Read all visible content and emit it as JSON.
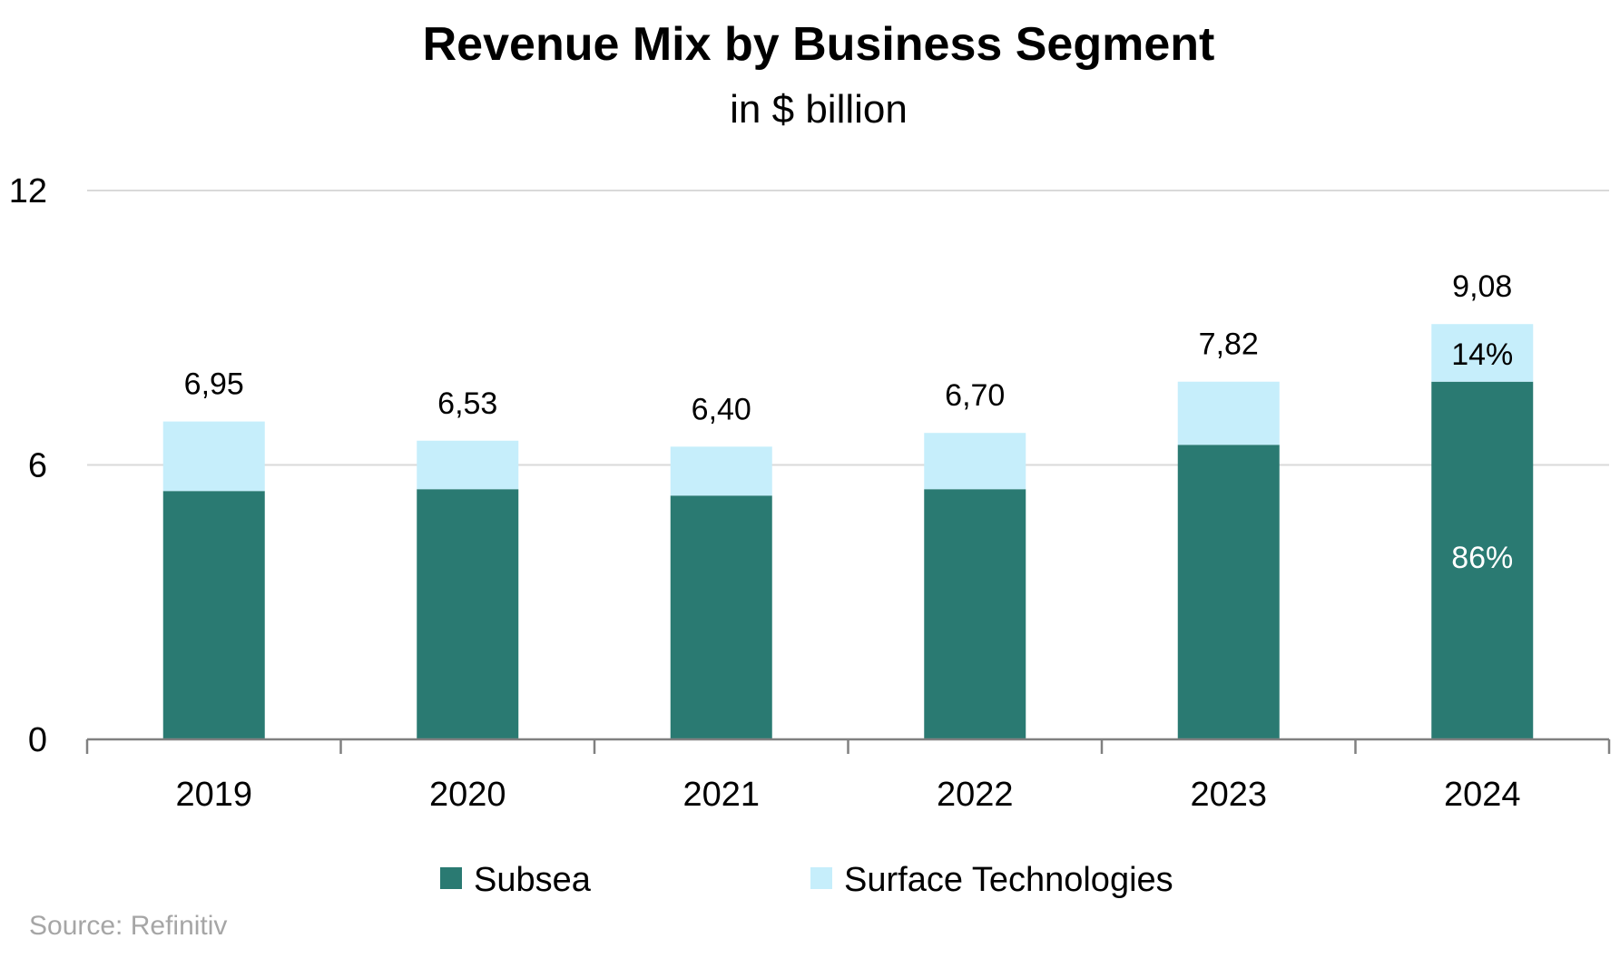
{
  "chart_data": {
    "type": "bar",
    "stacked": true,
    "title": "Revenue Mix by Business Segment",
    "subtitle": "in $ billion",
    "categories": [
      "2019",
      "2020",
      "2021",
      "2022",
      "2023",
      "2024"
    ],
    "series": [
      {
        "name": "Subsea",
        "color": "#2a7a72",
        "values": [
          5.43,
          5.47,
          5.33,
          5.47,
          6.44,
          7.82
        ]
      },
      {
        "name": "Surface Technologies",
        "color": "#c6eefb",
        "values": [
          1.52,
          1.06,
          1.07,
          1.23,
          1.38,
          1.26
        ]
      }
    ],
    "totals": [
      "6,95",
      "6,53",
      "6,40",
      "6,70",
      "7,82",
      "9,08"
    ],
    "share_labels": [
      {
        "category": "2024",
        "series": "Subsea",
        "text": "86%",
        "color": "#ffffff"
      },
      {
        "category": "2024",
        "series": "Surface Technologies",
        "text": "14%",
        "color": "#000000"
      }
    ],
    "ylim": [
      0,
      12
    ],
    "yticks": [
      0,
      6,
      12
    ],
    "grid": true,
    "legend_position": "bottom",
    "source": "Source: Refinitiv"
  }
}
